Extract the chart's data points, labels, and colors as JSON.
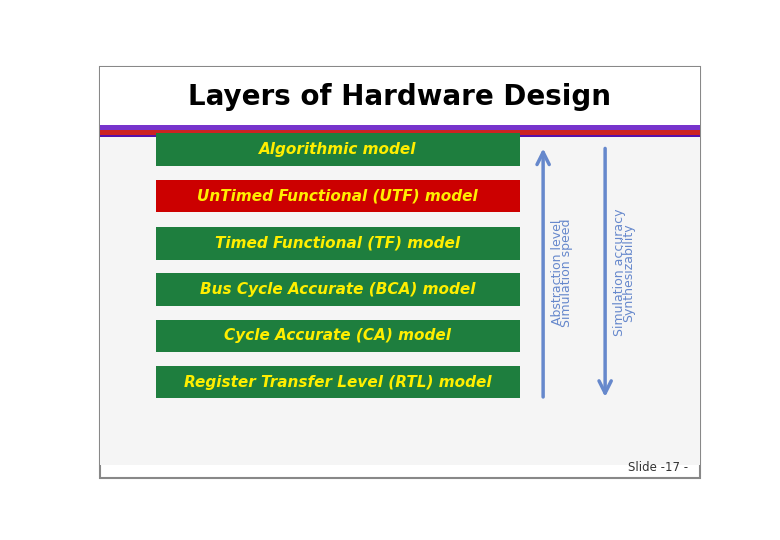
{
  "title": "Layers of Hardware Design",
  "title_fontsize": 20,
  "title_fontweight": "bold",
  "background_color": "#ffffff",
  "box_color_green": "#1e7e3e",
  "box_color_red": "#cc0000",
  "text_color_yellow": "#ffee00",
  "boxes": [
    {
      "label": "Algorithmic model",
      "color": "#1e7e3e"
    },
    {
      "label": "UnTimed Functional (UTF) model",
      "color": "#cc0000"
    },
    {
      "label": "Timed Functional (TF) model",
      "color": "#1e7e3e"
    },
    {
      "label": "Bus Cycle Accurate (BCA) model",
      "color": "#1e7e3e"
    },
    {
      "label": "Cycle Accurate (CA) model",
      "color": "#1e7e3e"
    },
    {
      "label": "Register Transfer Level (RTL) model",
      "color": "#1e7e3e"
    }
  ],
  "arrow_color": "#6688cc",
  "arrow_label_left1": "Abstraction level",
  "arrow_label_left2": "Simulation speed",
  "arrow_label_right1": "Simulation accuracy",
  "arrow_label_right2": "Synthesizability",
  "footer_text": "Slide -17 -",
  "stripe_purple": "#7733cc",
  "stripe_red": "#cc2222",
  "stripe_thin_purple": "#5511aa",
  "outer_border_color": "#888888",
  "inner_bg_color": "#f0f0f0"
}
